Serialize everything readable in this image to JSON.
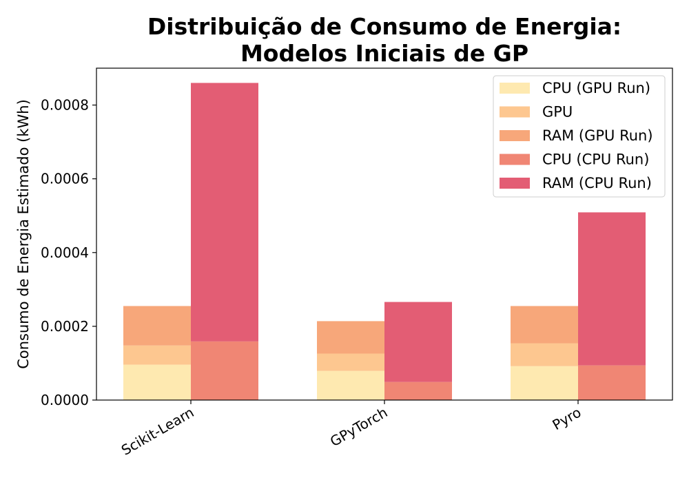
{
  "chart_data": {
    "type": "bar",
    "title_line1": "Distribuição de Consumo de Energia:",
    "title_line2": "Modelos Iniciais de GP",
    "xlabel": "",
    "ylabel": "Consumo de Energia Estimado (kWh)",
    "categories": [
      "Scikit-Learn",
      "GPyTorch",
      "Pyro"
    ],
    "ylim": [
      0,
      0.0009
    ],
    "yticks": [
      "0.0000",
      "0.0002",
      "0.0004",
      "0.0006",
      "0.0008"
    ],
    "ytick_values": [
      0,
      0.0002,
      0.0004,
      0.0006,
      0.0008
    ],
    "stacking": "GPU-run components stacked in left bar; CPU-run components stacked in right bar",
    "series": [
      {
        "name": "CPU (GPU Run)",
        "group": "gpu_run",
        "color": "#fee9b0",
        "values": [
          9.6e-05,
          7.9e-05,
          9.2e-05
        ]
      },
      {
        "name": "GPU",
        "group": "gpu_run",
        "color": "#fdc790",
        "values": [
          5.2e-05,
          4.7e-05,
          6.2e-05
        ]
      },
      {
        "name": "RAM (GPU Run)",
        "group": "gpu_run",
        "color": "#f7a77a",
        "values": [
          0.000107,
          8.8e-05,
          0.000101
        ]
      },
      {
        "name": "CPU (CPU Run)",
        "group": "cpu_run",
        "color": "#f08674",
        "values": [
          0.000159,
          4.9e-05,
          9.4e-05
        ]
      },
      {
        "name": "RAM (CPU Run)",
        "group": "cpu_run",
        "color": "#e35d74",
        "values": [
          0.000701,
          0.000217,
          0.000415
        ]
      }
    ],
    "legend_position": "top-right",
    "grid": false
  }
}
